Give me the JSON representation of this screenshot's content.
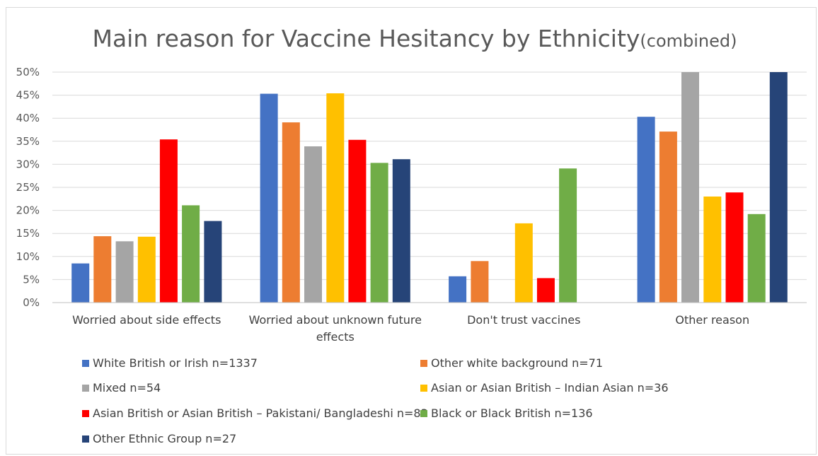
{
  "chart_data": {
    "type": "bar",
    "title": "Main reason for Vaccine Hesitancy by Ethnicity",
    "title_suffix": "(combined)",
    "xlabel": "",
    "ylabel": "",
    "ylim": [
      0,
      50
    ],
    "yticks": [
      "0%",
      "5%",
      "10%",
      "15%",
      "20%",
      "25%",
      "30%",
      "35%",
      "40%",
      "45%",
      "50%"
    ],
    "grid": true,
    "legend_position": "bottom",
    "categories": [
      [
        "Worried about side effects"
      ],
      [
        "Worried about unknown future",
        "effects"
      ],
      [
        "Don't trust vaccines"
      ],
      [
        "Other reason"
      ]
    ],
    "series": [
      {
        "name": "White British or Irish n=1337",
        "color": "#4472c4",
        "values": [
          8.5,
          45.3,
          5.7,
          40.3
        ]
      },
      {
        "name": " Other white background n=71",
        "color": "#ed7d31",
        "values": [
          14.4,
          39.1,
          9.0,
          37.1
        ]
      },
      {
        "name": "Mixed n=54",
        "color": "#a5a5a5",
        "values": [
          13.3,
          33.9,
          0,
          50
        ]
      },
      {
        "name": "Asian or Asian British – Indian Asian n=36",
        "color": "#ffc000",
        "values": [
          14.3,
          45.4,
          17.2,
          23.0
        ]
      },
      {
        "name": "Asian British or Asian British – Pakistani/ Bangladeshi n=83",
        "color": "#ff0000",
        "values": [
          35.4,
          35.3,
          5.3,
          23.9
        ]
      },
      {
        "name": "Black or Black British n=136",
        "color": "#70ad47",
        "values": [
          21.1,
          30.3,
          29.1,
          19.2
        ]
      },
      {
        "name": " Other Ethnic Group n=27",
        "color": "#264478",
        "values": [
          17.7,
          31.1,
          0,
          50
        ]
      }
    ]
  }
}
